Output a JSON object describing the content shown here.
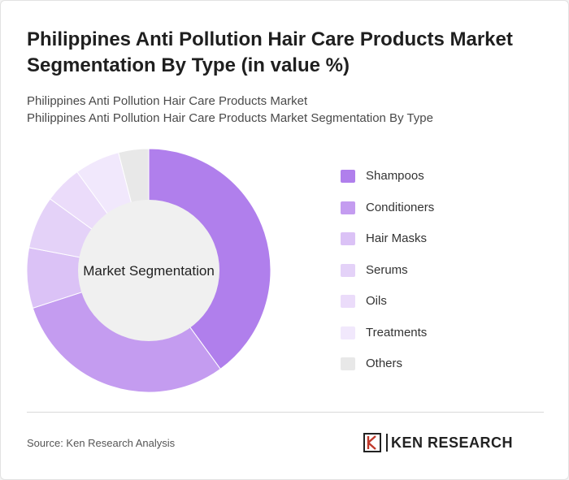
{
  "header": {
    "title": "Philippines Anti Pollution Hair Care Products Market Segmentation By Type (in value %)",
    "subtitle_line1": "Philippines Anti Pollution Hair Care Products Market",
    "subtitle_line2": "Philippines Anti Pollution Hair Care Products Market Segmentation By Type"
  },
  "chart_data": {
    "type": "pie",
    "variant": "donut",
    "center_label": "Market Segmentation",
    "categories": [
      "Shampoos",
      "Conditioners",
      "Hair Masks",
      "Serums",
      "Oils",
      "Treatments",
      "Others"
    ],
    "values": [
      40,
      30,
      8,
      7,
      5,
      6,
      4
    ],
    "colors": [
      "#b07fec",
      "#c49cf0",
      "#dbc2f6",
      "#e4d2f8",
      "#ebdcfa",
      "#f1e8fc",
      "#e8e8e8"
    ],
    "center_color": "#f0f0f0",
    "legend_position": "right"
  },
  "footer": {
    "source": "Source: Ken Research Analysis",
    "brand": "KEN RESEARCH"
  }
}
